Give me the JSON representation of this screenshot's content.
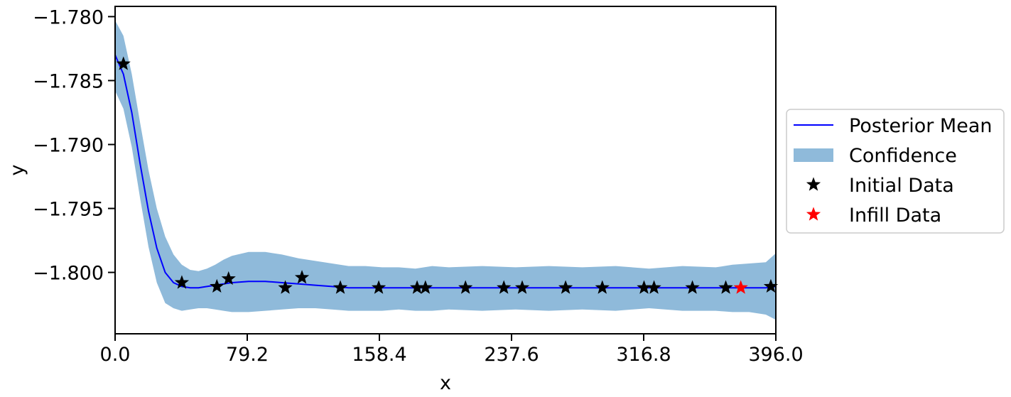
{
  "chart_data": {
    "type": "line",
    "xlabel": "x",
    "ylabel": "y",
    "xlim": [
      0,
      396
    ],
    "ylim": [
      -1.8048,
      -1.7792
    ],
    "xticks": [
      0,
      79.2,
      158.4,
      237.6,
      316.8,
      396
    ],
    "xtick_labels": [
      "0.0",
      "79.2",
      "158.4",
      "237.6",
      "316.8",
      "396.0"
    ],
    "yticks": [
      -1.8,
      -1.795,
      -1.79,
      -1.785,
      -1.78
    ],
    "ytick_labels": [
      "−1.800",
      "−1.795",
      "−1.790",
      "−1.785",
      "−1.780"
    ],
    "legend": {
      "placement": "center-right-outside",
      "entries": [
        {
          "label": "Posterior Mean",
          "kind": "line",
          "color": "#0000ff"
        },
        {
          "label": "Confidence",
          "kind": "patch",
          "color": "#8fbada"
        },
        {
          "label": "Initial Data",
          "kind": "star",
          "color": "#000000"
        },
        {
          "label": "Infill Data",
          "kind": "star",
          "color": "#ff0000"
        }
      ]
    },
    "series": [
      {
        "name": "Posterior Mean",
        "color": "#0000ff",
        "x": [
          0,
          5,
          10,
          15,
          20,
          25,
          30,
          35,
          40,
          45,
          50,
          55,
          60,
          65,
          70,
          80,
          90,
          100,
          110,
          120,
          130,
          140,
          150,
          160,
          180,
          200,
          220,
          240,
          260,
          280,
          300,
          320,
          340,
          360,
          380,
          390,
          396
        ],
        "y": [
          -1.783,
          -1.7845,
          -1.7875,
          -1.7915,
          -1.7952,
          -1.7981,
          -1.8,
          -1.8008,
          -1.8011,
          -1.8012,
          -1.8012,
          -1.8011,
          -1.801,
          -1.8009,
          -1.8008,
          -1.8007,
          -1.8007,
          -1.8008,
          -1.8009,
          -1.801,
          -1.8011,
          -1.8012,
          -1.8012,
          -1.8012,
          -1.8012,
          -1.8012,
          -1.8012,
          -1.8012,
          -1.8012,
          -1.8012,
          -1.8012,
          -1.8012,
          -1.8012,
          -1.8012,
          -1.8012,
          -1.8012,
          -1.8011
        ]
      },
      {
        "name": "Confidence",
        "color": "#8fbada",
        "x": [
          0,
          5,
          10,
          15,
          20,
          25,
          30,
          35,
          40,
          45,
          50,
          55,
          60,
          65,
          70,
          80,
          90,
          100,
          110,
          120,
          130,
          140,
          150,
          160,
          170,
          180,
          190,
          200,
          220,
          240,
          260,
          280,
          300,
          320,
          340,
          360,
          370,
          380,
          390,
          396
        ],
        "upper": [
          -1.7803,
          -1.7815,
          -1.7845,
          -1.7883,
          -1.792,
          -1.795,
          -1.7972,
          -1.7986,
          -1.7994,
          -1.7998,
          -1.7999,
          -1.7997,
          -1.7994,
          -1.799,
          -1.7987,
          -1.7984,
          -1.7984,
          -1.7986,
          -1.7989,
          -1.7991,
          -1.7993,
          -1.7995,
          -1.7995,
          -1.7996,
          -1.7996,
          -1.7997,
          -1.7995,
          -1.7996,
          -1.7995,
          -1.7996,
          -1.7995,
          -1.7996,
          -1.7995,
          -1.7997,
          -1.7995,
          -1.7996,
          -1.7994,
          -1.7993,
          -1.7992,
          -1.7985
        ],
        "lower": [
          -1.7858,
          -1.7872,
          -1.7902,
          -1.7942,
          -1.798,
          -1.8008,
          -1.8024,
          -1.8028,
          -1.803,
          -1.8029,
          -1.8028,
          -1.8028,
          -1.8029,
          -1.803,
          -1.8031,
          -1.8031,
          -1.803,
          -1.8029,
          -1.8028,
          -1.8028,
          -1.8029,
          -1.803,
          -1.803,
          -1.803,
          -1.8029,
          -1.803,
          -1.803,
          -1.8029,
          -1.803,
          -1.8029,
          -1.803,
          -1.8029,
          -1.803,
          -1.8028,
          -1.803,
          -1.803,
          -1.8031,
          -1.8031,
          -1.8033,
          -1.8037
        ]
      },
      {
        "name": "Initial Data",
        "color": "#000000",
        "points": [
          [
            5,
            -1.7837
          ],
          [
            40,
            -1.8008
          ],
          [
            61,
            -1.8011
          ],
          [
            68,
            -1.8005
          ],
          [
            102,
            -1.8012
          ],
          [
            112,
            -1.8004
          ],
          [
            135,
            -1.8012
          ],
          [
            158,
            -1.8012
          ],
          [
            181,
            -1.8012
          ],
          [
            186,
            -1.8012
          ],
          [
            210,
            -1.8012
          ],
          [
            233,
            -1.8012
          ],
          [
            244,
            -1.8012
          ],
          [
            270,
            -1.8012
          ],
          [
            292,
            -1.8012
          ],
          [
            317,
            -1.8012
          ],
          [
            323,
            -1.8012
          ],
          [
            346,
            -1.8012
          ],
          [
            366,
            -1.8012
          ],
          [
            393,
            -1.8011
          ]
        ]
      },
      {
        "name": "Infill Data",
        "color": "#ff0000",
        "points": [
          [
            375,
            -1.8012
          ]
        ]
      }
    ]
  }
}
